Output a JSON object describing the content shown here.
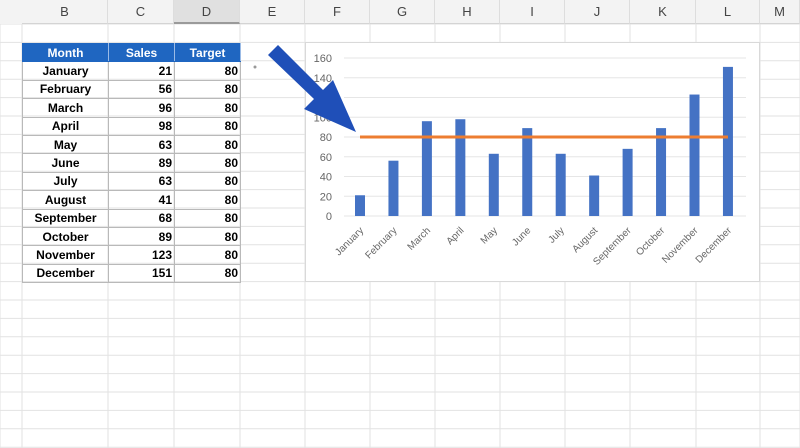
{
  "columns": [
    "B",
    "C",
    "D",
    "E",
    "F",
    "G",
    "H",
    "I",
    "J",
    "K",
    "L",
    "M"
  ],
  "selected_column": "D",
  "table": {
    "headers": [
      "Month",
      "Sales",
      "Target"
    ],
    "rows": [
      [
        "January",
        21,
        80
      ],
      [
        "February",
        56,
        80
      ],
      [
        "March",
        96,
        80
      ],
      [
        "April",
        98,
        80
      ],
      [
        "May",
        63,
        80
      ],
      [
        "June",
        89,
        80
      ],
      [
        "July",
        63,
        80
      ],
      [
        "August",
        41,
        80
      ],
      [
        "September",
        68,
        80
      ],
      [
        "October",
        89,
        80
      ],
      [
        "November",
        123,
        80
      ],
      [
        "December",
        151,
        80
      ]
    ]
  },
  "colors": {
    "header": "#1f66c1",
    "bar": "#4472c4",
    "line": "#ed7d31",
    "arrow": "#1f4fb8"
  },
  "chart_data": {
    "type": "bar+line",
    "categories": [
      "January",
      "February",
      "March",
      "April",
      "May",
      "June",
      "July",
      "August",
      "September",
      "October",
      "November",
      "December"
    ],
    "series": [
      {
        "type": "bar",
        "values": [
          21,
          56,
          96,
          98,
          63,
          89,
          63,
          41,
          68,
          89,
          123,
          151
        ]
      },
      {
        "type": "line",
        "values": [
          80,
          80,
          80,
          80,
          80,
          80,
          80,
          80,
          80,
          80,
          80,
          80
        ]
      }
    ],
    "yticks": [
      0,
      20,
      40,
      60,
      80,
      100,
      120,
      140,
      160
    ],
    "ylim": [
      0,
      160
    ],
    "grid": true,
    "annotation": "blue arrow pointing at target line"
  }
}
